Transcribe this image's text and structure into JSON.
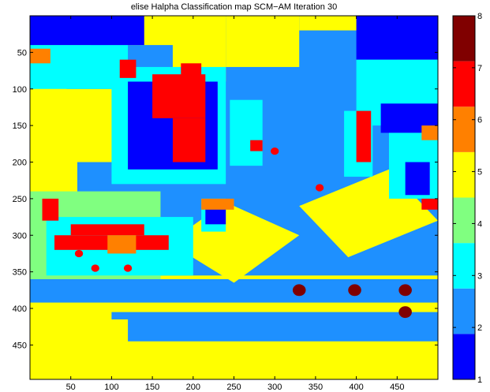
{
  "chart_data": {
    "type": "heatmap",
    "title": "elise Halpha Classification map SCM−AM Iteration 30",
    "xlabel": "",
    "ylabel": "",
    "xlim": [
      0,
      500
    ],
    "ylim": [
      0,
      497
    ],
    "y_reversed": true,
    "x_ticks": [
      50,
      100,
      150,
      200,
      250,
      300,
      350,
      400,
      450
    ],
    "x_tick_labels": [
      "50",
      "100",
      "150",
      "200",
      "250",
      "300",
      "350",
      "400",
      "450"
    ],
    "y_ticks": [
      50,
      100,
      150,
      200,
      250,
      300,
      350,
      400,
      450
    ],
    "y_tick_labels": [
      "50",
      "100",
      "150",
      "200",
      "250",
      "300",
      "350",
      "400",
      "450"
    ],
    "grid": false,
    "colorbar": {
      "min": 1,
      "max": 8,
      "ticks": [
        1,
        2,
        3,
        4,
        5,
        6,
        7,
        8
      ],
      "tick_labels": [
        "1",
        "2",
        "3",
        "4",
        "5",
        "6",
        "7",
        "8"
      ],
      "colors": [
        "#0000ff",
        "#1e90ff",
        "#00ffff",
        "#80ff80",
        "#ffff00",
        "#ff8000",
        "#ff0000",
        "#800000"
      ]
    },
    "classes": [
      1,
      2,
      3,
      4,
      5,
      6,
      7,
      8
    ],
    "background_class": 2,
    "regions": [
      {
        "class": 5,
        "x": [
          0,
          500
        ],
        "y": [
          355,
          497
        ],
        "kind": "rect"
      },
      {
        "class": 2,
        "x": [
          0,
          500
        ],
        "y": [
          360,
          392
        ],
        "kind": "rect"
      },
      {
        "class": 2,
        "x": [
          100,
          500
        ],
        "y": [
          405,
          445
        ],
        "kind": "rect"
      },
      {
        "class": 5,
        "x": [
          30,
          120
        ],
        "y": [
          415,
          470
        ],
        "kind": "rect"
      },
      {
        "class": 5,
        "x": [
          0,
          58
        ],
        "y": [
          160,
          260
        ],
        "kind": "rect"
      },
      {
        "class": 5,
        "x": [
          0,
          45
        ],
        "y": [
          60,
          160
        ],
        "kind": "rect"
      },
      {
        "class": 5,
        "x": [
          95,
          180
        ],
        "y": [
          0,
          40
        ],
        "kind": "rect"
      },
      {
        "class": 5,
        "x": [
          175,
          240
        ],
        "y": [
          0,
          90
        ],
        "kind": "rect"
      },
      {
        "class": 5,
        "x": [
          240,
          330
        ],
        "y": [
          0,
          70
        ],
        "kind": "rect"
      },
      {
        "class": 5,
        "x": [
          330,
          430
        ],
        "y": [
          0,
          20
        ],
        "kind": "rect"
      },
      {
        "class": 5,
        "x": [
          450,
          500
        ],
        "y": [
          0,
          60
        ],
        "kind": "rect"
      },
      {
        "class": 5,
        "x": [
          0,
          130
        ],
        "y": [
          100,
          200
        ],
        "kind": "rect"
      },
      {
        "class": 5,
        "x": [
          330,
          500
        ],
        "y": [
          210,
          320
        ],
        "kind": "poly",
        "points": [
          [
            330,
            260
          ],
          [
            440,
            210
          ],
          [
            500,
            280
          ],
          [
            390,
            330
          ]
        ]
      },
      {
        "class": 5,
        "x": [
          170,
          330
        ],
        "y": [
          250,
          365
        ],
        "kind": "poly",
        "points": [
          [
            170,
            310
          ],
          [
            240,
            255
          ],
          [
            330,
            300
          ],
          [
            250,
            365
          ]
        ]
      },
      {
        "class": 4,
        "x": [
          0,
          160
        ],
        "y": [
          240,
          360
        ],
        "kind": "rect"
      },
      {
        "class": 3,
        "x": [
          20,
          200
        ],
        "y": [
          275,
          355
        ],
        "kind": "rect"
      },
      {
        "class": 4,
        "x": [
          0,
          500
        ],
        "y": [
          20,
          90
        ],
        "kind": "poly",
        "points": [
          [
            0,
            25
          ],
          [
            60,
            15
          ],
          [
            80,
            50
          ],
          [
            20,
            80
          ]
        ]
      },
      {
        "class": 3,
        "x": [
          0,
          120
        ],
        "y": [
          40,
          100
        ],
        "kind": "rect"
      },
      {
        "class": 1,
        "x": [
          0,
          140
        ],
        "y": [
          0,
          40
        ],
        "kind": "rect"
      },
      {
        "class": 3,
        "x": [
          100,
          240
        ],
        "y": [
          70,
          230
        ],
        "kind": "rect"
      },
      {
        "class": 1,
        "x": [
          120,
          230
        ],
        "y": [
          90,
          210
        ],
        "kind": "rect"
      },
      {
        "class": 3,
        "x": [
          245,
          285
        ],
        "y": [
          115,
          205
        ],
        "kind": "rect"
      },
      {
        "class": 3,
        "x": [
          385,
          420
        ],
        "y": [
          130,
          220
        ],
        "kind": "rect"
      },
      {
        "class": 3,
        "x": [
          210,
          240
        ],
        "y": [
          250,
          295
        ],
        "kind": "rect"
      },
      {
        "class": 1,
        "x": [
          215,
          240
        ],
        "y": [
          255,
          285
        ],
        "kind": "rect"
      },
      {
        "class": 1,
        "x": [
          400,
          500
        ],
        "y": [
          0,
          60
        ],
        "kind": "rect"
      },
      {
        "class": 3,
        "x": [
          400,
          500
        ],
        "y": [
          60,
          150
        ],
        "kind": "rect"
      },
      {
        "class": 1,
        "x": [
          430,
          500
        ],
        "y": [
          120,
          160
        ],
        "kind": "rect"
      },
      {
        "class": 3,
        "x": [
          440,
          500
        ],
        "y": [
          160,
          250
        ],
        "kind": "rect"
      },
      {
        "class": 1,
        "x": [
          460,
          490
        ],
        "y": [
          200,
          245
        ],
        "kind": "rect"
      },
      {
        "class": 5,
        "x": [
          0,
          500
        ],
        "y": [
          180,
          200
        ],
        "kind": "none"
      },
      {
        "class": 7,
        "x": [
          30,
          170
        ],
        "y": [
          300,
          320
        ],
        "kind": "rect"
      },
      {
        "class": 7,
        "x": [
          50,
          140
        ],
        "y": [
          285,
          300
        ],
        "kind": "rect"
      },
      {
        "class": 7,
        "x": [
          150,
          215
        ],
        "y": [
          80,
          140
        ],
        "kind": "rect"
      },
      {
        "class": 7,
        "x": [
          175,
          215
        ],
        "y": [
          140,
          200
        ],
        "kind": "rect"
      },
      {
        "class": 7,
        "x": [
          400,
          418
        ],
        "y": [
          130,
          200
        ],
        "kind": "rect"
      },
      {
        "class": 6,
        "x": [
          0,
          25
        ],
        "y": [
          45,
          65
        ],
        "kind": "rect"
      },
      {
        "class": 6,
        "x": [
          210,
          250
        ],
        "y": [
          250,
          265
        ],
        "kind": "rect"
      },
      {
        "class": 6,
        "x": [
          95,
          130
        ],
        "y": [
          300,
          325
        ],
        "kind": "rect"
      },
      {
        "class": 6,
        "x": [
          480,
          500
        ],
        "y": [
          150,
          170
        ],
        "kind": "rect"
      },
      {
        "class": 7,
        "x": [
          185,
          210
        ],
        "y": [
          65,
          95
        ],
        "kind": "rect"
      },
      {
        "class": 7,
        "x": [
          110,
          130
        ],
        "y": [
          60,
          85
        ],
        "kind": "rect"
      },
      {
        "class": 7,
        "x": [
          15,
          35
        ],
        "y": [
          250,
          280
        ],
        "kind": "rect"
      },
      {
        "class": 7,
        "x": [
          270,
          285
        ],
        "y": [
          170,
          185
        ],
        "kind": "rect"
      },
      {
        "class": 7,
        "x": [
          480,
          500
        ],
        "y": [
          250,
          265
        ],
        "kind": "rect"
      }
    ],
    "circles": [
      {
        "class": 8,
        "x": 330,
        "y": 375,
        "r": 8
      },
      {
        "class": 8,
        "x": 398,
        "y": 375,
        "r": 8
      },
      {
        "class": 8,
        "x": 460,
        "y": 375,
        "r": 8
      },
      {
        "class": 8,
        "x": 460,
        "y": 405,
        "r": 8
      },
      {
        "class": 7,
        "x": 300,
        "y": 185,
        "r": 5
      },
      {
        "class": 7,
        "x": 355,
        "y": 235,
        "r": 5
      },
      {
        "class": 7,
        "x": 60,
        "y": 325,
        "r": 5
      },
      {
        "class": 7,
        "x": 80,
        "y": 345,
        "r": 5
      },
      {
        "class": 7,
        "x": 120,
        "y": 345,
        "r": 5
      }
    ]
  }
}
